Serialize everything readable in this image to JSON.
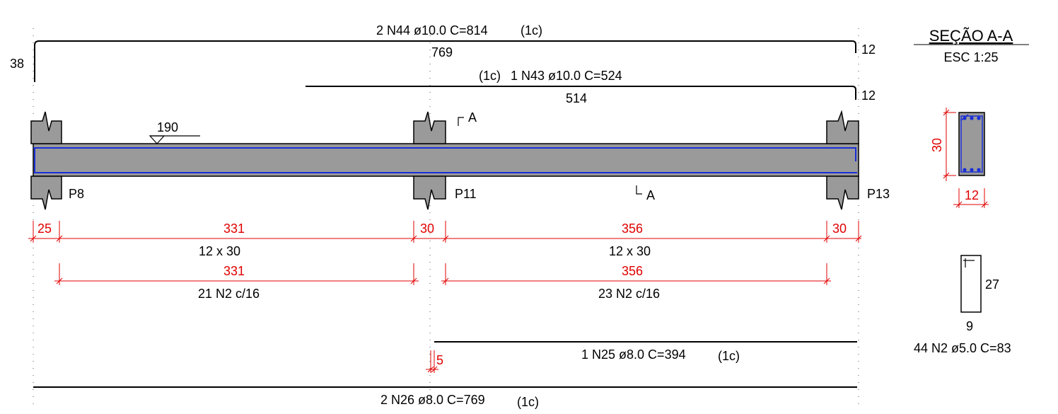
{
  "colors": {
    "concrete": "#9a9a9a",
    "rebar": "#1a2fd6",
    "dimension": "#e00000",
    "line": "#000000"
  },
  "bars": {
    "n44": {
      "label": "2 N44 ø10.0 C=814",
      "layer": "(1c)",
      "straight": "769",
      "hook_left": "38",
      "hook_right": "12"
    },
    "n43": {
      "label": "1 N43 ø10.0 C=524",
      "layer": "(1c)",
      "straight": "514",
      "hook_right": "12"
    },
    "n25": {
      "label": "1 N25 ø8.0 C=394",
      "layer": "(1c)",
      "offset": "5"
    },
    "n26": {
      "label": "2 N26 ø8.0 C=769",
      "layer": "(1c)"
    }
  },
  "beam": {
    "level_mark": "190",
    "supports": [
      "P8",
      "P11",
      "P13"
    ],
    "section_mark": "A"
  },
  "dimensions": {
    "row1": [
      "25",
      "331",
      "30",
      "356",
      "30"
    ],
    "row1_sub": [
      "12 x 30",
      "12 x 30"
    ],
    "row2": [
      "331",
      "356"
    ],
    "row2_sub": [
      "21 N2 c/16",
      "23 N2 c/16"
    ]
  },
  "section": {
    "title": "SEÇÃO A-A",
    "scale": "ESC 1:25",
    "height": "30",
    "width": "12"
  },
  "stirrup": {
    "height": "27",
    "width": "9",
    "label": "44 N2 ø5.0 C=83"
  }
}
